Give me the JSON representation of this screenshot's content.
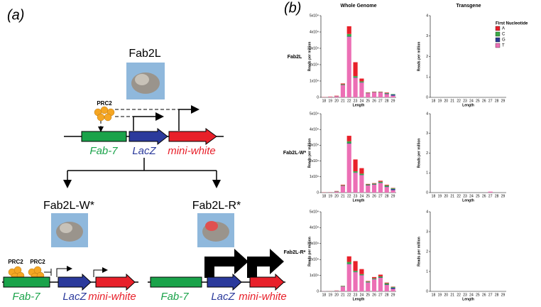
{
  "panel_a": {
    "label": "(a)",
    "top": {
      "title": "Fab2L",
      "prc2": "PRC2",
      "fab7": "Fab-7",
      "lacz": "LacZ",
      "miniwhite": "mini-white"
    },
    "left": {
      "title": "Fab2L-W*",
      "prc2a": "PRC2",
      "prc2b": "PRC2",
      "fab7": "Fab-7",
      "lacz": "LacZ",
      "miniwhite": "mini-white"
    },
    "right": {
      "title": "Fab2L-R*",
      "fab7": "Fab-7",
      "lacz": "LacZ",
      "miniwhite": "mini-white"
    }
  },
  "panel_b": {
    "label": "(b)",
    "column_titles": [
      "Whole Genome",
      "Transgene"
    ],
    "row_labels": [
      "Fab2L",
      "Fab2L-W*",
      "Fab2L-R*"
    ]
  },
  "chart_data": [
    {
      "type": "bar",
      "stacked": true,
      "legend_title": "First Nucleotide",
      "x_label": "Length",
      "y_label": "Reads per million",
      "categories": [
        "18",
        "19",
        "20",
        "21",
        "22",
        "23",
        "24",
        "25",
        "26",
        "27",
        "28",
        "29"
      ],
      "ylim": [
        0,
        50000
      ],
      "yticks": [
        0,
        {
          "value": 10000,
          "label": "1x10⁴"
        },
        {
          "value": 20000,
          "label": "2x10⁴"
        },
        {
          "value": 30000,
          "label": "3x10⁴"
        },
        {
          "value": 40000,
          "label": "4x10⁴"
        },
        {
          "value": 50000,
          "label": "5x10⁴"
        }
      ],
      "series": [
        {
          "name": "T",
          "color": "#ec6fb5",
          "values": [
            100,
            300,
            600,
            7500,
            37000,
            12000,
            9000,
            2500,
            3000,
            3000,
            2000,
            1000
          ]
        },
        {
          "name": "G",
          "color": "#2b3990",
          "values": [
            0,
            0,
            50,
            100,
            300,
            200,
            200,
            100,
            100,
            100,
            300,
            700
          ]
        },
        {
          "name": "C",
          "color": "#3aaa47",
          "values": [
            0,
            50,
            100,
            400,
            1500,
            800,
            600,
            200,
            200,
            200,
            400,
            300
          ]
        },
        {
          "name": "A",
          "color": "#e8202a",
          "values": [
            100,
            150,
            250,
            500,
            4700,
            8500,
            1700,
            200,
            200,
            200,
            300,
            0
          ]
        }
      ]
    },
    {
      "type": "bar",
      "stacked": true,
      "x_label": "Length",
      "y_label": "Reads per million",
      "categories": [
        "18",
        "19",
        "20",
        "21",
        "22",
        "23",
        "24",
        "25",
        "26",
        "27",
        "28",
        "29"
      ],
      "ylim": [
        0,
        4
      ],
      "yticks": [
        0,
        1,
        2,
        3,
        4
      ],
      "series": [
        {
          "name": "T",
          "color": "#ec6fb5",
          "values": [
            0,
            0,
            0,
            0,
            0,
            0,
            0,
            0,
            0,
            0,
            0,
            0
          ]
        },
        {
          "name": "G",
          "color": "#2b3990",
          "values": [
            0,
            0,
            0,
            0,
            0,
            0,
            0,
            0,
            0,
            0,
            0,
            0
          ]
        },
        {
          "name": "C",
          "color": "#3aaa47",
          "values": [
            0,
            0,
            0,
            0,
            0,
            0,
            0,
            0,
            0,
            0,
            0,
            0
          ]
        },
        {
          "name": "A",
          "color": "#e8202a",
          "values": [
            0,
            0,
            0,
            0,
            0,
            0,
            0,
            0,
            0,
            0,
            0,
            0
          ]
        }
      ]
    },
    {
      "type": "bar",
      "stacked": true,
      "x_label": "Length",
      "y_label": "Reads per million",
      "categories": [
        "18",
        "19",
        "20",
        "21",
        "22",
        "23",
        "24",
        "25",
        "26",
        "27",
        "28",
        "29"
      ],
      "ylim": [
        0,
        50000
      ],
      "yticks": [
        0,
        {
          "value": 10000,
          "label": "1x10⁴"
        },
        {
          "value": 20000,
          "label": "2x10⁴"
        },
        {
          "value": 30000,
          "label": "3x10⁴"
        },
        {
          "value": 40000,
          "label": "4x10⁴"
        },
        {
          "value": 50000,
          "label": "5x10⁴"
        }
      ],
      "series": [
        {
          "name": "T",
          "color": "#ec6fb5",
          "values": [
            100,
            200,
            500,
            4200,
            31000,
            12500,
            11000,
            4500,
            5000,
            6000,
            3500,
            1500
          ]
        },
        {
          "name": "G",
          "color": "#2b3990",
          "values": [
            0,
            0,
            100,
            100,
            300,
            200,
            200,
            200,
            200,
            200,
            300,
            800
          ]
        },
        {
          "name": "C",
          "color": "#3aaa47",
          "values": [
            0,
            50,
            200,
            300,
            1200,
            800,
            800,
            500,
            500,
            700,
            800,
            500
          ]
        },
        {
          "name": "A",
          "color": "#e8202a",
          "values": [
            100,
            50,
            200,
            400,
            3500,
            7500,
            3500,
            300,
            300,
            600,
            400,
            200
          ]
        }
      ]
    },
    {
      "type": "bar",
      "stacked": true,
      "x_label": "Length",
      "y_label": "Reads per million",
      "categories": [
        "18",
        "19",
        "20",
        "21",
        "22",
        "23",
        "24",
        "25",
        "26",
        "27",
        "28",
        "29"
      ],
      "ylim": [
        0,
        4
      ],
      "yticks": [
        0,
        1,
        2,
        3,
        4
      ],
      "series": [
        {
          "name": "T",
          "color": "#ec6fb5",
          "values": [
            0,
            0,
            0,
            0,
            0,
            0,
            0,
            0,
            0,
            0.05,
            0,
            0
          ]
        },
        {
          "name": "G",
          "color": "#2b3990",
          "values": [
            0,
            0,
            0,
            0,
            0,
            0,
            0,
            0,
            0,
            0,
            0,
            0
          ]
        },
        {
          "name": "C",
          "color": "#3aaa47",
          "values": [
            0,
            0,
            0,
            0,
            0,
            0,
            0,
            0,
            0,
            0,
            0,
            0
          ]
        },
        {
          "name": "A",
          "color": "#e8202a",
          "values": [
            0,
            0,
            0,
            0,
            0,
            0,
            0,
            0,
            0,
            0,
            0,
            0
          ]
        }
      ]
    },
    {
      "type": "bar",
      "stacked": true,
      "x_label": "Length",
      "y_label": "Reads per million",
      "categories": [
        "18",
        "19",
        "20",
        "21",
        "22",
        "23",
        "24",
        "25",
        "26",
        "27",
        "28",
        "29"
      ],
      "ylim": [
        0,
        50000
      ],
      "yticks": [
        0,
        {
          "value": 10000,
          "label": "1x10⁴"
        },
        {
          "value": 20000,
          "label": "2x10⁴"
        },
        {
          "value": 30000,
          "label": "3x10⁴"
        },
        {
          "value": 40000,
          "label": "4x10⁴"
        },
        {
          "value": 50000,
          "label": "5x10⁴"
        }
      ],
      "series": [
        {
          "name": "T",
          "color": "#ec6fb5",
          "values": [
            100,
            100,
            300,
            3000,
            17000,
            12000,
            10000,
            5500,
            7500,
            8500,
            4000,
            1500
          ]
        },
        {
          "name": "G",
          "color": "#2b3990",
          "values": [
            0,
            0,
            50,
            100,
            300,
            200,
            200,
            200,
            200,
            200,
            300,
            800
          ]
        },
        {
          "name": "C",
          "color": "#3aaa47",
          "values": [
            0,
            50,
            100,
            300,
            1200,
            700,
            600,
            500,
            500,
            700,
            800,
            500
          ]
        },
        {
          "name": "A",
          "color": "#e8202a",
          "values": [
            0,
            50,
            100,
            100,
            3500,
            6100,
            3200,
            300,
            800,
            1100,
            400,
            200
          ]
        }
      ]
    },
    {
      "type": "bar",
      "stacked": true,
      "x_label": "Length",
      "y_label": "Reads per million",
      "categories": [
        "18",
        "19",
        "20",
        "21",
        "22",
        "23",
        "24",
        "25",
        "26",
        "27",
        "28",
        "29"
      ],
      "ylim": [
        0,
        4
      ],
      "yticks": [
        0,
        1,
        2,
        3,
        4
      ],
      "series": [
        {
          "name": "T",
          "color": "#ec6fb5",
          "values": [
            0,
            0,
            0,
            0,
            0,
            0,
            0,
            0,
            0,
            0,
            0,
            0
          ]
        },
        {
          "name": "G",
          "color": "#2b3990",
          "values": [
            0,
            0,
            0,
            0,
            0,
            0,
            0,
            0,
            0,
            0,
            0,
            0
          ]
        },
        {
          "name": "C",
          "color": "#3aaa47",
          "values": [
            0,
            0,
            0,
            0,
            0,
            0,
            0,
            0,
            0,
            0,
            0,
            0
          ]
        },
        {
          "name": "A",
          "color": "#e8202a",
          "values": [
            0,
            0,
            0,
            0,
            0,
            0,
            0,
            0,
            0,
            0,
            0,
            0
          ]
        }
      ]
    }
  ]
}
